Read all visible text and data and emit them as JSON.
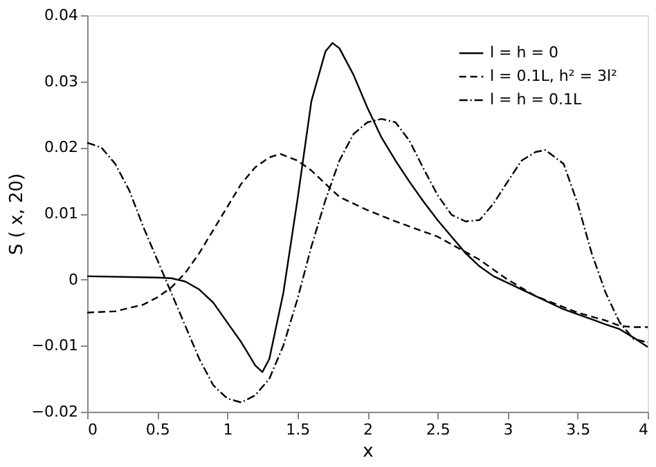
{
  "chart_data": {
    "type": "line",
    "xlabel": "x",
    "ylabel": "S ( x, 20)",
    "xlim": [
      0,
      4
    ],
    "ylim": [
      -0.02,
      0.04
    ],
    "xticks": [
      0,
      0.5,
      1,
      1.5,
      2,
      2.5,
      3,
      3.5,
      4
    ],
    "yticks": [
      -0.02,
      -0.01,
      0,
      0.01,
      0.02,
      0.03,
      0.04
    ],
    "grid": false,
    "legend": "top right",
    "marker": "none",
    "series": [
      {
        "name": "l = h = 0",
        "color": "#000000",
        "line_style": "solid",
        "x": [
          0,
          0.5,
          0.6,
          0.7,
          0.8,
          0.9,
          1.0,
          1.1,
          1.2,
          1.25,
          1.3,
          1.4,
          1.5,
          1.6,
          1.7,
          1.75,
          1.8,
          1.9,
          2.0,
          2.1,
          2.2,
          2.3,
          2.4,
          2.5,
          2.6,
          2.7,
          2.8,
          2.9,
          3.0,
          3.2,
          3.4,
          3.6,
          3.7,
          3.8,
          3.9,
          4.0
        ],
        "values": [
          0.0005,
          0.0003,
          0.0002,
          -0.0003,
          -0.0015,
          -0.0035,
          -0.0065,
          -0.0095,
          -0.013,
          -0.014,
          -0.012,
          -0.002,
          0.012,
          0.027,
          0.0345,
          0.0358,
          0.035,
          0.031,
          0.026,
          0.0215,
          0.018,
          0.0148,
          0.0118,
          0.009,
          0.0065,
          0.004,
          0.002,
          0.0005,
          -0.0005,
          -0.0025,
          -0.0045,
          -0.006,
          -0.0068,
          -0.0075,
          -0.0088,
          -0.0102
        ]
      },
      {
        "name": "l = 0.1L,  h² = 3l²",
        "color": "#000000",
        "line_style": "dashed",
        "x": [
          0,
          0.2,
          0.4,
          0.5,
          0.6,
          0.7,
          0.8,
          0.9,
          1.0,
          1.1,
          1.2,
          1.3,
          1.38,
          1.5,
          1.6,
          1.7,
          1.8,
          2.0,
          2.2,
          2.5,
          2.8,
          3.0,
          3.2,
          3.5,
          3.7,
          3.8,
          3.9,
          4.0
        ],
        "values": [
          -0.005,
          -0.0048,
          -0.0038,
          -0.0027,
          -0.0012,
          0.001,
          0.004,
          0.0075,
          0.011,
          0.0145,
          0.017,
          0.0185,
          0.019,
          0.018,
          0.0165,
          0.0145,
          0.0125,
          0.0105,
          0.0088,
          0.0065,
          0.003,
          0.0,
          -0.0025,
          -0.005,
          -0.0062,
          -0.007,
          -0.0072,
          -0.0072
        ]
      },
      {
        "name": "l = h = 0.1L",
        "color": "#000000",
        "line_style": "dashdot",
        "x": [
          0,
          0.1,
          0.2,
          0.3,
          0.4,
          0.5,
          0.6,
          0.7,
          0.8,
          0.9,
          1.0,
          1.1,
          1.2,
          1.3,
          1.4,
          1.5,
          1.6,
          1.7,
          1.8,
          1.9,
          2.0,
          2.1,
          2.2,
          2.3,
          2.4,
          2.5,
          2.6,
          2.7,
          2.8,
          2.9,
          3.0,
          3.1,
          3.2,
          3.27,
          3.4,
          3.5,
          3.6,
          3.7,
          3.8,
          3.9,
          4.0
        ],
        "values": [
          0.0207,
          0.02,
          0.0175,
          0.0135,
          0.008,
          0.003,
          -0.002,
          -0.007,
          -0.012,
          -0.016,
          -0.018,
          -0.0186,
          -0.0175,
          -0.015,
          -0.01,
          -0.003,
          0.005,
          0.012,
          0.018,
          0.022,
          0.0238,
          0.0243,
          0.0238,
          0.021,
          0.0168,
          0.0128,
          0.0098,
          0.0088,
          0.009,
          0.0115,
          0.0148,
          0.018,
          0.0193,
          0.0196,
          0.0175,
          0.0115,
          0.004,
          -0.002,
          -0.0065,
          -0.009,
          -0.0095
        ]
      }
    ]
  }
}
